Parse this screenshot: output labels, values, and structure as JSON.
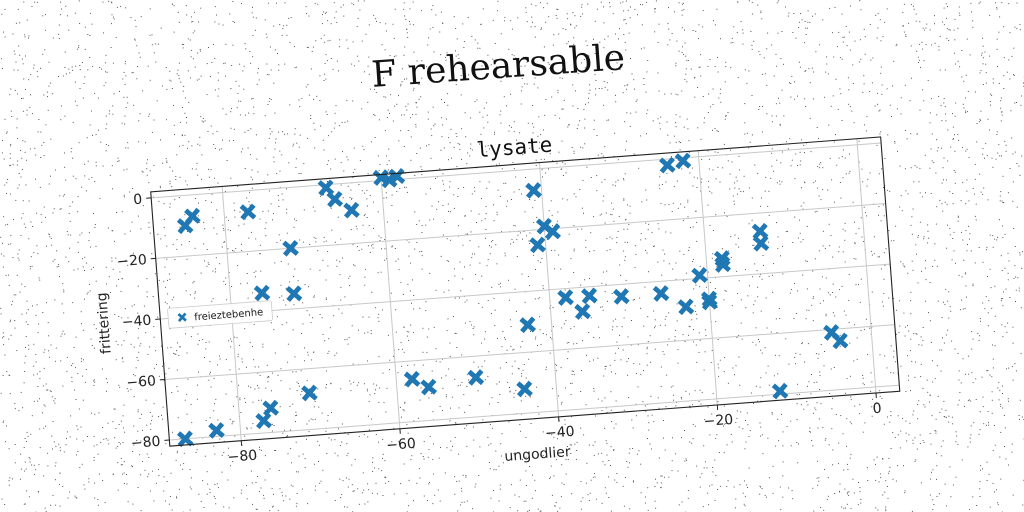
{
  "chart_data": {
    "type": "scatter",
    "suptitle": "F rehearsable",
    "title": "lysate",
    "xlabel": "ungodlier",
    "ylabel": "frittering",
    "xlim": [
      -89,
      3
    ],
    "ylim": [
      -82,
      2
    ],
    "xticks": [
      -80,
      -60,
      -40,
      -20,
      0
    ],
    "yticks": [
      0,
      -20,
      -40,
      -60,
      -80
    ],
    "grid": true,
    "legend": {
      "position": "center-left"
    },
    "marker": "X",
    "color": "#1f77b4",
    "series": [
      {
        "name": "freieztebenhe",
        "x": [
          -85,
          -84,
          -77,
          -76,
          -72,
          -72,
          -67,
          -66,
          -64,
          -60,
          -59,
          -58,
          -41,
          -41,
          -40,
          -39,
          -38,
          -24,
          -22,
          -21,
          -20,
          -18,
          -13,
          -12,
          -5,
          -4,
          -87,
          -83,
          -77,
          -76,
          -71,
          -58,
          -56,
          -50,
          -44,
          -43,
          -36,
          -35,
          -31,
          -26,
          -23,
          -20,
          -18,
          -13
        ],
        "y": [
          -10,
          -7,
          -7,
          -34,
          -20,
          -35,
          -1,
          -5,
          -9,
          1,
          0,
          1,
          -7,
          -25,
          -19,
          -21,
          -43,
          -2,
          -1,
          -39,
          -48,
          -36,
          -30,
          -79,
          -61,
          -64,
          -80,
          -78,
          -76,
          -72,
          -68,
          -66,
          -69,
          -67,
          -72,
          -51,
          -48,
          -43,
          -44,
          -44,
          -49,
          -47,
          -34,
          -26
        ]
      }
    ]
  }
}
